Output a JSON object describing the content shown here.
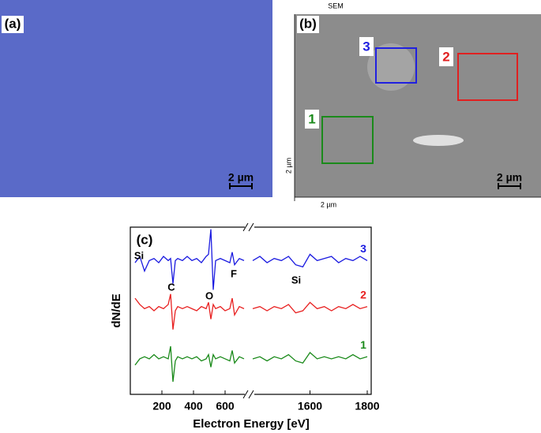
{
  "panels": {
    "a": {
      "label": "(a)",
      "scale_bar": "2 µm"
    },
    "b": {
      "label": "(b)",
      "title": "SEM",
      "scale_bar": "2 µm",
      "x_axis_label": "2 µm",
      "y_axis_label": "2 µm",
      "regions": [
        {
          "label": "1",
          "color": "#1a8a1a"
        },
        {
          "label": "2",
          "color": "#e02020"
        },
        {
          "label": "3",
          "color": "#2020e0"
        }
      ]
    }
  },
  "chart_data": {
    "type": "line",
    "panel_label": "(c)",
    "y_label": "dN/dE",
    "x_label": "Electron Energy [eV]",
    "xlim": [
      0,
      1800
    ],
    "x_break": [
      750,
      1400
    ],
    "ylim": [
      0,
      4
    ],
    "xticks": [
      200,
      400,
      600,
      1600,
      1800
    ],
    "x": [
      30,
      60,
      90,
      120,
      150,
      180,
      210,
      240,
      255,
      270,
      285,
      300,
      330,
      360,
      390,
      420,
      450,
      480,
      495,
      510,
      525,
      540,
      570,
      600,
      630,
      645,
      660,
      690,
      720,
      1400,
      1425,
      1450,
      1475,
      1500,
      1525,
      1550,
      1575,
      1600,
      1625,
      1650,
      1675,
      1700,
      1725,
      1750,
      1775,
      1800
    ],
    "series": [
      {
        "name": "1",
        "color": "#1a8a1a",
        "values": [
          0.7,
          0.85,
          0.9,
          0.85,
          0.95,
          0.85,
          0.9,
          0.85,
          1.15,
          0.3,
          0.8,
          0.9,
          0.85,
          0.9,
          0.85,
          0.9,
          0.8,
          0.85,
          0.95,
          0.65,
          0.95,
          0.85,
          0.9,
          0.85,
          0.8,
          1.05,
          0.75,
          0.9,
          0.85,
          0.85,
          0.9,
          0.8,
          0.9,
          0.85,
          0.95,
          0.8,
          0.75,
          1.0,
          0.85,
          0.9,
          0.85,
          0.9,
          0.85,
          0.95,
          0.85,
          0.9
        ]
      },
      {
        "name": "2",
        "color": "#e82020",
        "values": [
          2.3,
          2.15,
          2.05,
          2.1,
          2.0,
          2.1,
          2.05,
          2.15,
          2.4,
          1.55,
          2.0,
          2.1,
          2.05,
          2.1,
          2.05,
          2.0,
          2.1,
          2.05,
          2.2,
          1.8,
          2.15,
          2.05,
          2.1,
          2.0,
          2.05,
          2.3,
          1.9,
          2.1,
          2.05,
          2.05,
          2.1,
          2.0,
          2.1,
          2.05,
          2.15,
          1.95,
          2.0,
          2.2,
          2.05,
          2.1,
          2.0,
          2.1,
          2.05,
          2.15,
          2.05,
          2.1
        ]
      },
      {
        "name": "3",
        "color": "#1a1ae0",
        "values": [
          3.15,
          3.3,
          2.95,
          3.2,
          3.25,
          3.15,
          3.3,
          3.2,
          3.25,
          2.65,
          3.2,
          3.25,
          3.2,
          3.3,
          3.2,
          3.25,
          3.15,
          3.3,
          3.35,
          3.95,
          2.5,
          3.2,
          3.25,
          3.2,
          3.15,
          3.4,
          3.1,
          3.25,
          3.2,
          3.2,
          3.3,
          3.15,
          3.25,
          3.2,
          3.3,
          3.1,
          3.05,
          3.35,
          3.2,
          3.25,
          3.3,
          3.15,
          3.25,
          3.2,
          3.3,
          3.2
        ]
      }
    ],
    "annotations": [
      "Si",
      "C",
      "O",
      "F",
      "Si"
    ]
  }
}
